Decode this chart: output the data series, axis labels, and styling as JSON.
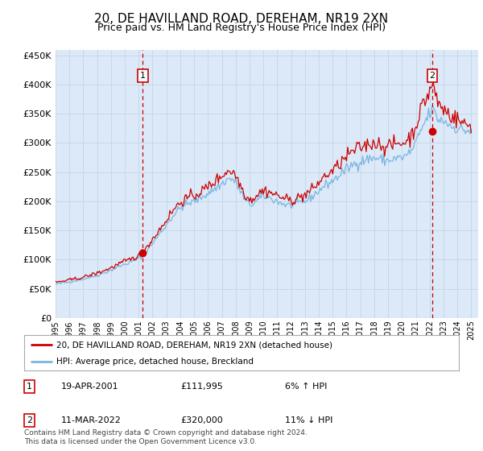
{
  "title": "20, DE HAVILLAND ROAD, DEREHAM, NR19 2XN",
  "subtitle": "Price paid vs. HM Land Registry's House Price Index (HPI)",
  "title_fontsize": 11,
  "subtitle_fontsize": 9,
  "background_color": "#ffffff",
  "plot_bg_color": "#dce9f8",
  "grid_color": "#c8d8e8",
  "ylabel_ticks": [
    "£0",
    "£50K",
    "£100K",
    "£150K",
    "£200K",
    "£250K",
    "£300K",
    "£350K",
    "£400K",
    "£450K"
  ],
  "ylabel_values": [
    0,
    50000,
    100000,
    150000,
    200000,
    250000,
    300000,
    350000,
    400000,
    450000
  ],
  "ylim": [
    0,
    460000
  ],
  "xlim_start": 1995.0,
  "xlim_end": 2025.5,
  "xtick_years": [
    1995,
    1996,
    1997,
    1998,
    1999,
    2000,
    2001,
    2002,
    2003,
    2004,
    2005,
    2006,
    2007,
    2008,
    2009,
    2010,
    2011,
    2012,
    2013,
    2014,
    2015,
    2016,
    2017,
    2018,
    2019,
    2020,
    2021,
    2022,
    2023,
    2024,
    2025
  ],
  "hpi_color": "#7ab5e0",
  "price_color": "#cc0000",
  "sale1_x": 2001.29,
  "sale1_y": 111995,
  "sale2_x": 2022.19,
  "sale2_y": 320000,
  "legend_line1": "20, DE HAVILLAND ROAD, DEREHAM, NR19 2XN (detached house)",
  "legend_line2": "HPI: Average price, detached house, Breckland",
  "sale1_date": "19-APR-2001",
  "sale1_price": "£111,995",
  "sale1_hpi": "6% ↑ HPI",
  "sale2_date": "11-MAR-2022",
  "sale2_price": "£320,000",
  "sale2_hpi": "11% ↓ HPI",
  "footer": "Contains HM Land Registry data © Crown copyright and database right 2024.\nThis data is licensed under the Open Government Licence v3.0."
}
